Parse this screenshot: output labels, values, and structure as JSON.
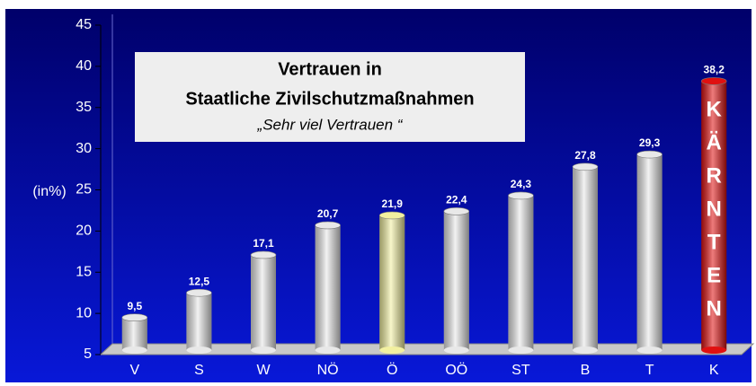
{
  "chart_data": {
    "type": "bar",
    "title": "Vertrauen in",
    "subtitle": "Staatliche Zivilschutzmaßnahmen",
    "note": "„Sehr viel Vertrauen “",
    "y_label": "(in%)",
    "annotation": "KÄRNTEN",
    "categories": [
      "V",
      "S",
      "W",
      "NÖ",
      "Ö",
      "OÖ",
      "ST",
      "B",
      "T",
      "K"
    ],
    "values": [
      9.5,
      12.5,
      17.1,
      20.7,
      21.9,
      22.4,
      24.3,
      27.8,
      29.3,
      38.2
    ],
    "value_labels": [
      "9,5",
      "12,5",
      "17,1",
      "20,7",
      "21,9",
      "22,4",
      "24,3",
      "27,8",
      "29,3",
      "38,2"
    ],
    "colors": [
      "#e8e8e8",
      "#e8e8e8",
      "#e8e8e8",
      "#e8e8e8",
      "#f2f0a0",
      "#e8e8e8",
      "#e8e8e8",
      "#e8e8e8",
      "#e8e8e8",
      "#e01010"
    ],
    "ylim": [
      5,
      45
    ],
    "yticks": [
      5,
      10,
      15,
      20,
      25,
      30,
      35,
      40,
      45
    ]
  }
}
